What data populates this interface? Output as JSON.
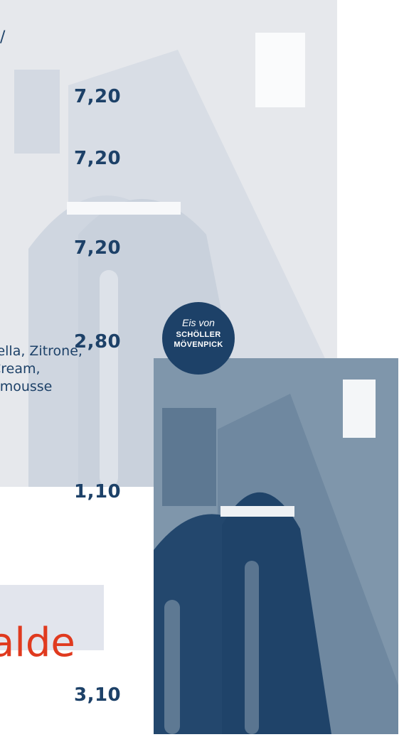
{
  "menu": {
    "slash_fragment": "/",
    "prices": [
      "7,20",
      "7,20",
      "7,20",
      "2,80",
      "1,10",
      "3,10"
    ],
    "description_lines": [
      "tella, Zitrone,",
      "Cream,",
      "emousse"
    ],
    "heading": "alde"
  },
  "badge": {
    "line1": "Eis von",
    "line2": "SCHÖLLER",
    "line3": "MÖVENPICK"
  },
  "colors": {
    "navy": "#1d4168",
    "accent_red": "#e03a1f",
    "faded_panel": "#e2e5ed"
  }
}
